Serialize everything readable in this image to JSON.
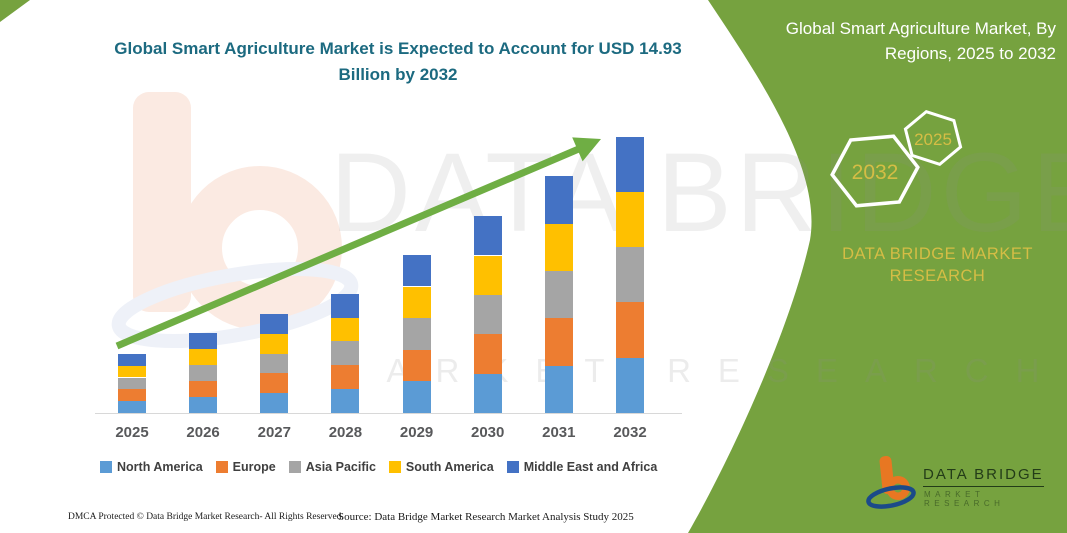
{
  "title": "Global Smart Agriculture Market is Expected to Account for USD 14.93 Billion by 2032",
  "title_color": "#1c6a80",
  "side_panel": {
    "heading": "Global Smart Agriculture Market, By Regions, 2025 to 2032",
    "bg_color": "#76a23f",
    "accent_text_color": "#d5bd45",
    "hexagons": [
      "2032",
      "2025"
    ],
    "brand": "DATA BRIDGE MARKET RESEARCH"
  },
  "watermark": {
    "line1": "DATA BRIDGE",
    "line2": "MARKET RESEARCH"
  },
  "logo": {
    "name": "DATA BRIDGE",
    "subtext": "MARKET RESEARCH"
  },
  "footer": {
    "left": "DMCA Protected © Data Bridge Market Research-  All Rights Reserved.",
    "right": "Source: Data Bridge Market Research  Market Analysis Study 2025"
  },
  "chart_data": {
    "type": "bar",
    "subtype": "stacked",
    "title": "Global Smart Agriculture Market, By Regions, 2025 to 2032",
    "unit": "USD Billion",
    "categories": [
      "2025",
      "2026",
      "2027",
      "2028",
      "2029",
      "2030",
      "2031",
      "2032"
    ],
    "series": [
      {
        "name": "North America",
        "color": "#5b9bd5",
        "values": [
          0.64,
          0.87,
          1.07,
          1.29,
          1.71,
          2.13,
          2.56,
          2.99
        ]
      },
      {
        "name": "Europe",
        "color": "#ed7d31",
        "values": [
          0.64,
          0.87,
          1.07,
          1.29,
          1.71,
          2.13,
          2.56,
          2.99
        ]
      },
      {
        "name": "Asia Pacific",
        "color": "#a5a5a5",
        "values": [
          0.64,
          0.87,
          1.07,
          1.29,
          1.71,
          2.13,
          2.56,
          2.99
        ]
      },
      {
        "name": "South America",
        "color": "#ffc000",
        "values": [
          0.64,
          0.87,
          1.07,
          1.29,
          1.71,
          2.13,
          2.56,
          2.99
        ]
      },
      {
        "name": "Middle East and Africa",
        "color": "#4472c4",
        "values": [
          0.64,
          0.87,
          1.07,
          1.29,
          1.71,
          2.13,
          2.56,
          2.99
        ]
      }
    ],
    "totals": [
      3.19,
      4.33,
      5.36,
      6.44,
      8.55,
      10.66,
      12.82,
      14.93
    ],
    "xlabel": "",
    "ylabel": "",
    "ylim": [
      0,
      15
    ],
    "grid": false,
    "legend_position": "bottom",
    "trend_arrow_color": "#6fae44"
  }
}
